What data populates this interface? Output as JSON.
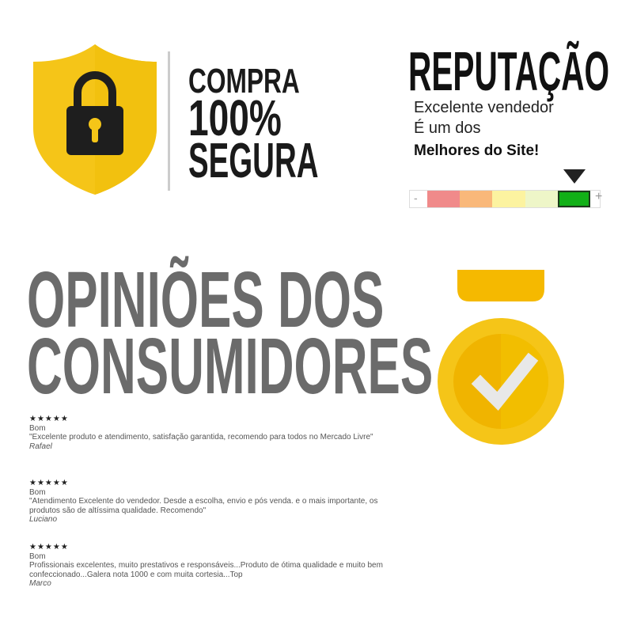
{
  "secure": {
    "line1": "COMPRA",
    "line2": "100%",
    "line3": "SEGURA",
    "icon": "padlock-shield-icon",
    "shield_color": "#f5c518"
  },
  "reputation": {
    "title": "REPUTAÇÃO",
    "line1": "Excelente vendedor",
    "line2": "É um dos",
    "line3": "Melhores do Site!",
    "scale_min": "-",
    "scale_max": "+",
    "scale_colors": [
      "#f08a8a",
      "#f9b87a",
      "#fcf3a0",
      "#eef6c8",
      "#11b017"
    ],
    "selected_level": 5
  },
  "opinions": {
    "title_line1": "OPINIÕES DOS",
    "title_line2": "CONSUMIDORES",
    "medal_icon": "medal-check-icon",
    "reviews": [
      {
        "stars": "★★★★★",
        "rating": "Bom",
        "text": "\"Excelente produto e atendimento, satisfação garantida, recomendo para todos no Mercado Livre\"",
        "author": "Rafael"
      },
      {
        "stars": "★★★★★",
        "rating": "Bom",
        "text": "\"Atendimento Excelente do vendedor. Desde a escolha, envio e pós venda. e o mais importante, os produtos são de altíssima qualidade. Recomendo\"",
        "author": "Luciano"
      },
      {
        "stars": "★★★★★",
        "rating": "Bom",
        "text": "Profissionais excelentes, muito prestativos e responsáveis...Produto de ótima qualidade e muito bem confeccionado...Galera nota 1000 e com muita cortesia...Top",
        "author": "Marco"
      }
    ]
  }
}
